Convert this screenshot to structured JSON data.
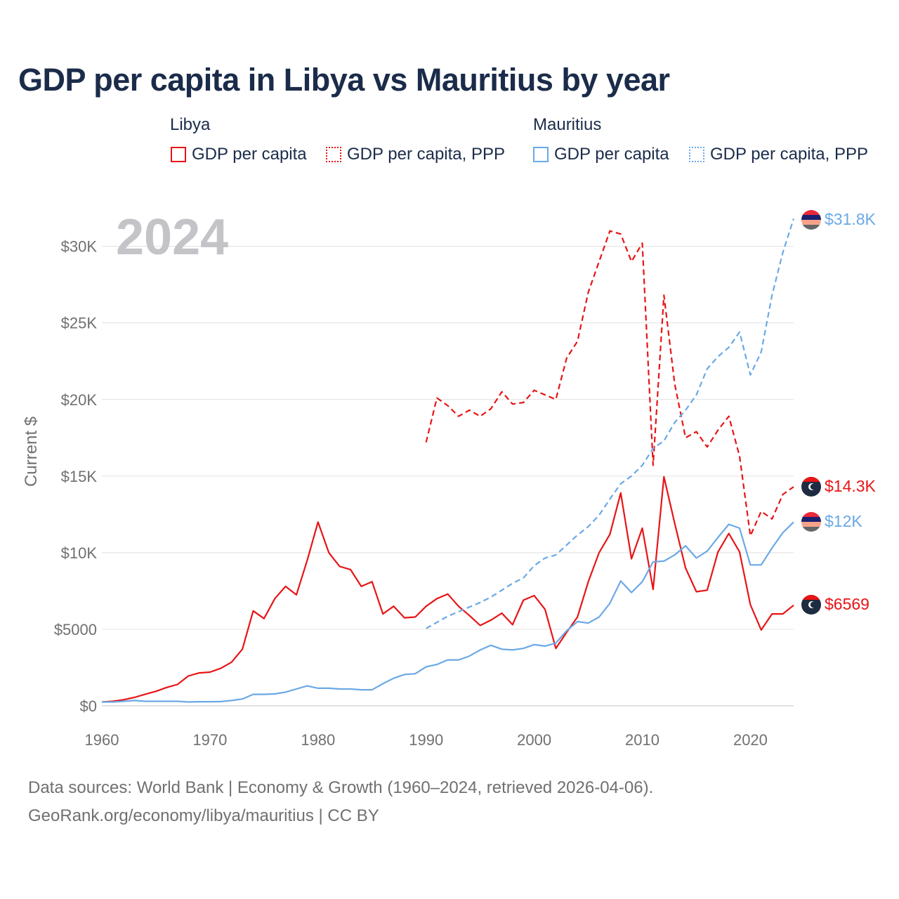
{
  "title": "GDP per capita in Libya vs Mauritius by year",
  "legend": {
    "groups": [
      {
        "country": "Libya",
        "items": [
          "GDP per capita",
          "GDP per capita, PPP"
        ],
        "color": "#e81416"
      },
      {
        "country": "Mauritius",
        "items": [
          "GDP per capita",
          "GDP per capita, PPP"
        ],
        "color": "#6aa9e6"
      }
    ]
  },
  "year_label": "2024",
  "source": {
    "line1": "Data sources: World Bank | Economy & Growth (1960–2024, retrieved 2026-04-06).",
    "line2": "GeoRank.org/economy/libya/mauritius | CC BY"
  },
  "colors": {
    "libya": "#e81416",
    "mauritius": "#6aa9e6",
    "title": "#1b2c4a",
    "year": "#c4c4c8",
    "grid": "#e6e6e6"
  },
  "end_labels": [
    {
      "series": "mauritius_ppp",
      "text": "$31.8K",
      "flag": "mauritius-flag-icon"
    },
    {
      "series": "libya_ppp",
      "text": "$14.3K",
      "flag": "libya-flag-icon"
    },
    {
      "series": "mauritius_gdp",
      "text": "$12K",
      "flag": "mauritius-flag-icon"
    },
    {
      "series": "libya_gdp",
      "text": "$6569",
      "flag": "libya-flag-icon"
    }
  ],
  "chart_data": {
    "type": "line",
    "title": "GDP per capita in Libya vs Mauritius by year",
    "xlabel": "",
    "ylabel": "Current $",
    "xlim": [
      1960,
      2024
    ],
    "ylim": [
      0,
      32000
    ],
    "xticks": [
      1960,
      1970,
      1980,
      1990,
      2000,
      2010,
      2020
    ],
    "xtick_labels": [
      "1960",
      "1970",
      "1980",
      "1990",
      "2000",
      "2010",
      "2020"
    ],
    "yticks": [
      0,
      5000,
      10000,
      15000,
      20000,
      25000,
      30000
    ],
    "ytick_labels": [
      "$0",
      "$5000",
      "$10K",
      "$15K",
      "$20K",
      "$25K",
      "$30K"
    ],
    "grid": true,
    "series": [
      {
        "id": "libya_gdp",
        "name": "Libya GDP per capita",
        "color": "#e81416",
        "dash": "solid",
        "start_year": 1960,
        "values": [
          250,
          300,
          400,
          550,
          750,
          950,
          1200,
          1400,
          1950,
          2150,
          2200,
          2450,
          2850,
          3700,
          6200,
          5700,
          7000,
          7800,
          7250,
          9500,
          12000,
          10000,
          9100,
          8900,
          7800,
          8100,
          6000,
          6500,
          5750,
          5800,
          6500,
          7000,
          7300,
          6500,
          5900,
          5250,
          5600,
          6050,
          5300,
          6900,
          7200,
          6300,
          3750,
          4800,
          5800,
          8100,
          10000,
          11200,
          13900,
          9600,
          11600,
          7600,
          14950,
          11900,
          9000,
          7450,
          7550,
          10050,
          11250,
          10050,
          6600,
          4950,
          6000,
          6000,
          6569
        ]
      },
      {
        "id": "libya_ppp",
        "name": "Libya GDP per capita, PPP",
        "color": "#e81416",
        "dash": "dashed",
        "start_year": 1990,
        "values": [
          17200,
          20100,
          19600,
          18900,
          19300,
          18900,
          19400,
          20500,
          19700,
          19800,
          20600,
          20300,
          20000,
          22700,
          23800,
          27000,
          29000,
          31000,
          30800,
          29000,
          30200,
          15700,
          26800,
          21000,
          17500,
          17900,
          16900,
          18000,
          18900,
          16300,
          11100,
          12700,
          12200,
          13800,
          14300
        ]
      },
      {
        "id": "mauritius_gdp",
        "name": "Mauritius GDP per capita",
        "color": "#6aa9e6",
        "dash": "solid",
        "start_year": 1960,
        "values": [
          250,
          250,
          300,
          350,
          300,
          300,
          300,
          300,
          250,
          270,
          270,
          280,
          350,
          450,
          750,
          750,
          780,
          900,
          1100,
          1300,
          1150,
          1150,
          1100,
          1100,
          1050,
          1050,
          1450,
          1800,
          2050,
          2100,
          2550,
          2700,
          3000,
          3000,
          3250,
          3650,
          3950,
          3700,
          3650,
          3750,
          4000,
          3900,
          4100,
          4900,
          5500,
          5400,
          5800,
          6700,
          8150,
          7400,
          8100,
          9400,
          9450,
          9850,
          10450,
          9650,
          10100,
          11000,
          11850,
          11600,
          9200,
          9200,
          10300,
          11300,
          12000
        ]
      },
      {
        "id": "mauritius_ppp",
        "name": "Mauritius GDP per capita, PPP",
        "color": "#6aa9e6",
        "dash": "dashed",
        "start_year": 1990,
        "values": [
          5050,
          5450,
          5850,
          6150,
          6450,
          6750,
          7100,
          7550,
          8000,
          8350,
          9150,
          9650,
          9850,
          10500,
          11150,
          11700,
          12450,
          13500,
          14500,
          15000,
          15700,
          16800,
          17300,
          18500,
          19300,
          20300,
          22000,
          22800,
          23400,
          24400,
          21600,
          23100,
          26800,
          29600,
          31800
        ]
      }
    ]
  }
}
